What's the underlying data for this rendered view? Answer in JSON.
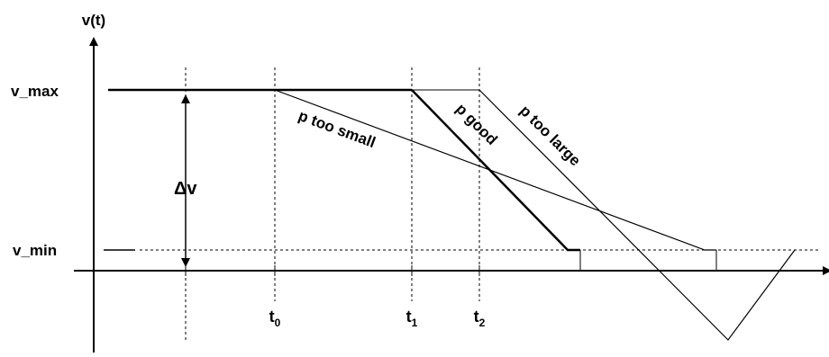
{
  "axes": {
    "y_label": "v(t)",
    "v_max_label": "v_max",
    "v_min_label": "v_min",
    "delta_label": "Δv"
  },
  "ticks": [
    {
      "base": "t",
      "sub": "0"
    },
    {
      "base": "t",
      "sub": "1"
    },
    {
      "base": "t",
      "sub": "2"
    }
  ],
  "curves": {
    "small": "p too small",
    "good": "p good",
    "large": "p too large"
  }
}
